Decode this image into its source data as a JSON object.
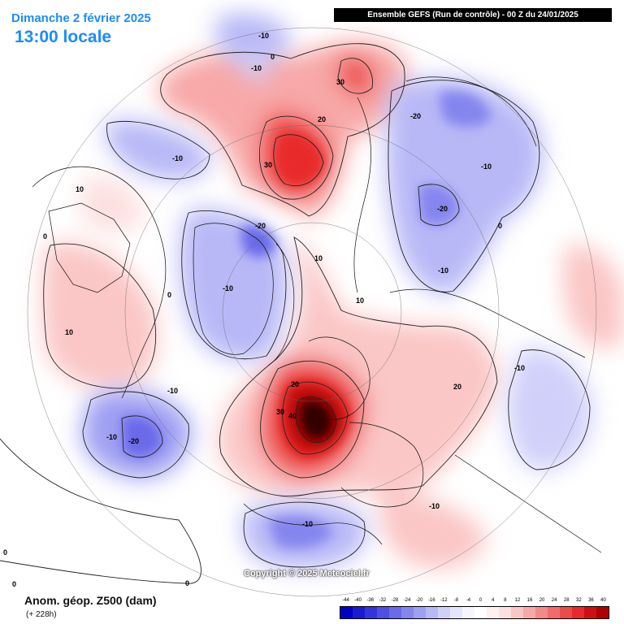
{
  "header": {
    "date": "Dimanche 2 février 2025",
    "time": "13:00 locale",
    "model": "Ensemble GEFS  (Run de contrôle)  -  00 Z du 24/01/2025"
  },
  "footer": {
    "copyright": "Copyright © 2025 Meteociel.fr",
    "variable": "Anom. géop. Z500 (dam)",
    "lead": "(+ 228h)"
  },
  "legend": {
    "labels": [
      "-44",
      "-40",
      "-36",
      "-32",
      "-28",
      "-24",
      "-20",
      "-16",
      "-12",
      "-8",
      "-4",
      "0",
      "4",
      "8",
      "12",
      "16",
      "20",
      "24",
      "28",
      "32",
      "36",
      "40"
    ],
    "colors": [
      "#0000c8",
      "#1a1ad2",
      "#3434dc",
      "#4f4fe4",
      "#6a6aea",
      "#8585ef",
      "#9f9ff3",
      "#b8b8f7",
      "#d0d0fa",
      "#e4e4fc",
      "#f5f5fe",
      "#ffffff",
      "#fff0f0",
      "#fde0e0",
      "#fbc6c6",
      "#f8a8a8",
      "#f58989",
      "#f26a6a",
      "#ee4a4a",
      "#e82a2a",
      "#d01010",
      "#b00000"
    ]
  },
  "contour_labels": [
    {
      "text": "-10"
    },
    {
      "text": "-10"
    },
    {
      "text": "0"
    },
    {
      "text": "30"
    },
    {
      "text": "20"
    },
    {
      "text": "30"
    },
    {
      "text": "-20"
    },
    {
      "text": "-10"
    },
    {
      "text": "-20"
    },
    {
      "text": "-10"
    },
    {
      "text": "-10"
    },
    {
      "text": "10"
    },
    {
      "text": "0"
    },
    {
      "text": "-20"
    },
    {
      "text": "-10"
    },
    {
      "text": "10"
    },
    {
      "text": "10"
    },
    {
      "text": "0"
    },
    {
      "text": "10"
    },
    {
      "text": "20"
    },
    {
      "text": "30"
    },
    {
      "text": "40"
    },
    {
      "text": "-10"
    },
    {
      "text": "-20"
    },
    {
      "text": "-10"
    },
    {
      "text": "20"
    },
    {
      "text": "-10"
    },
    {
      "text": "-10"
    },
    {
      "text": "-10"
    },
    {
      "text": "0"
    },
    {
      "text": "0"
    },
    {
      "text": "0"
    },
    {
      "text": "0"
    }
  ]
}
